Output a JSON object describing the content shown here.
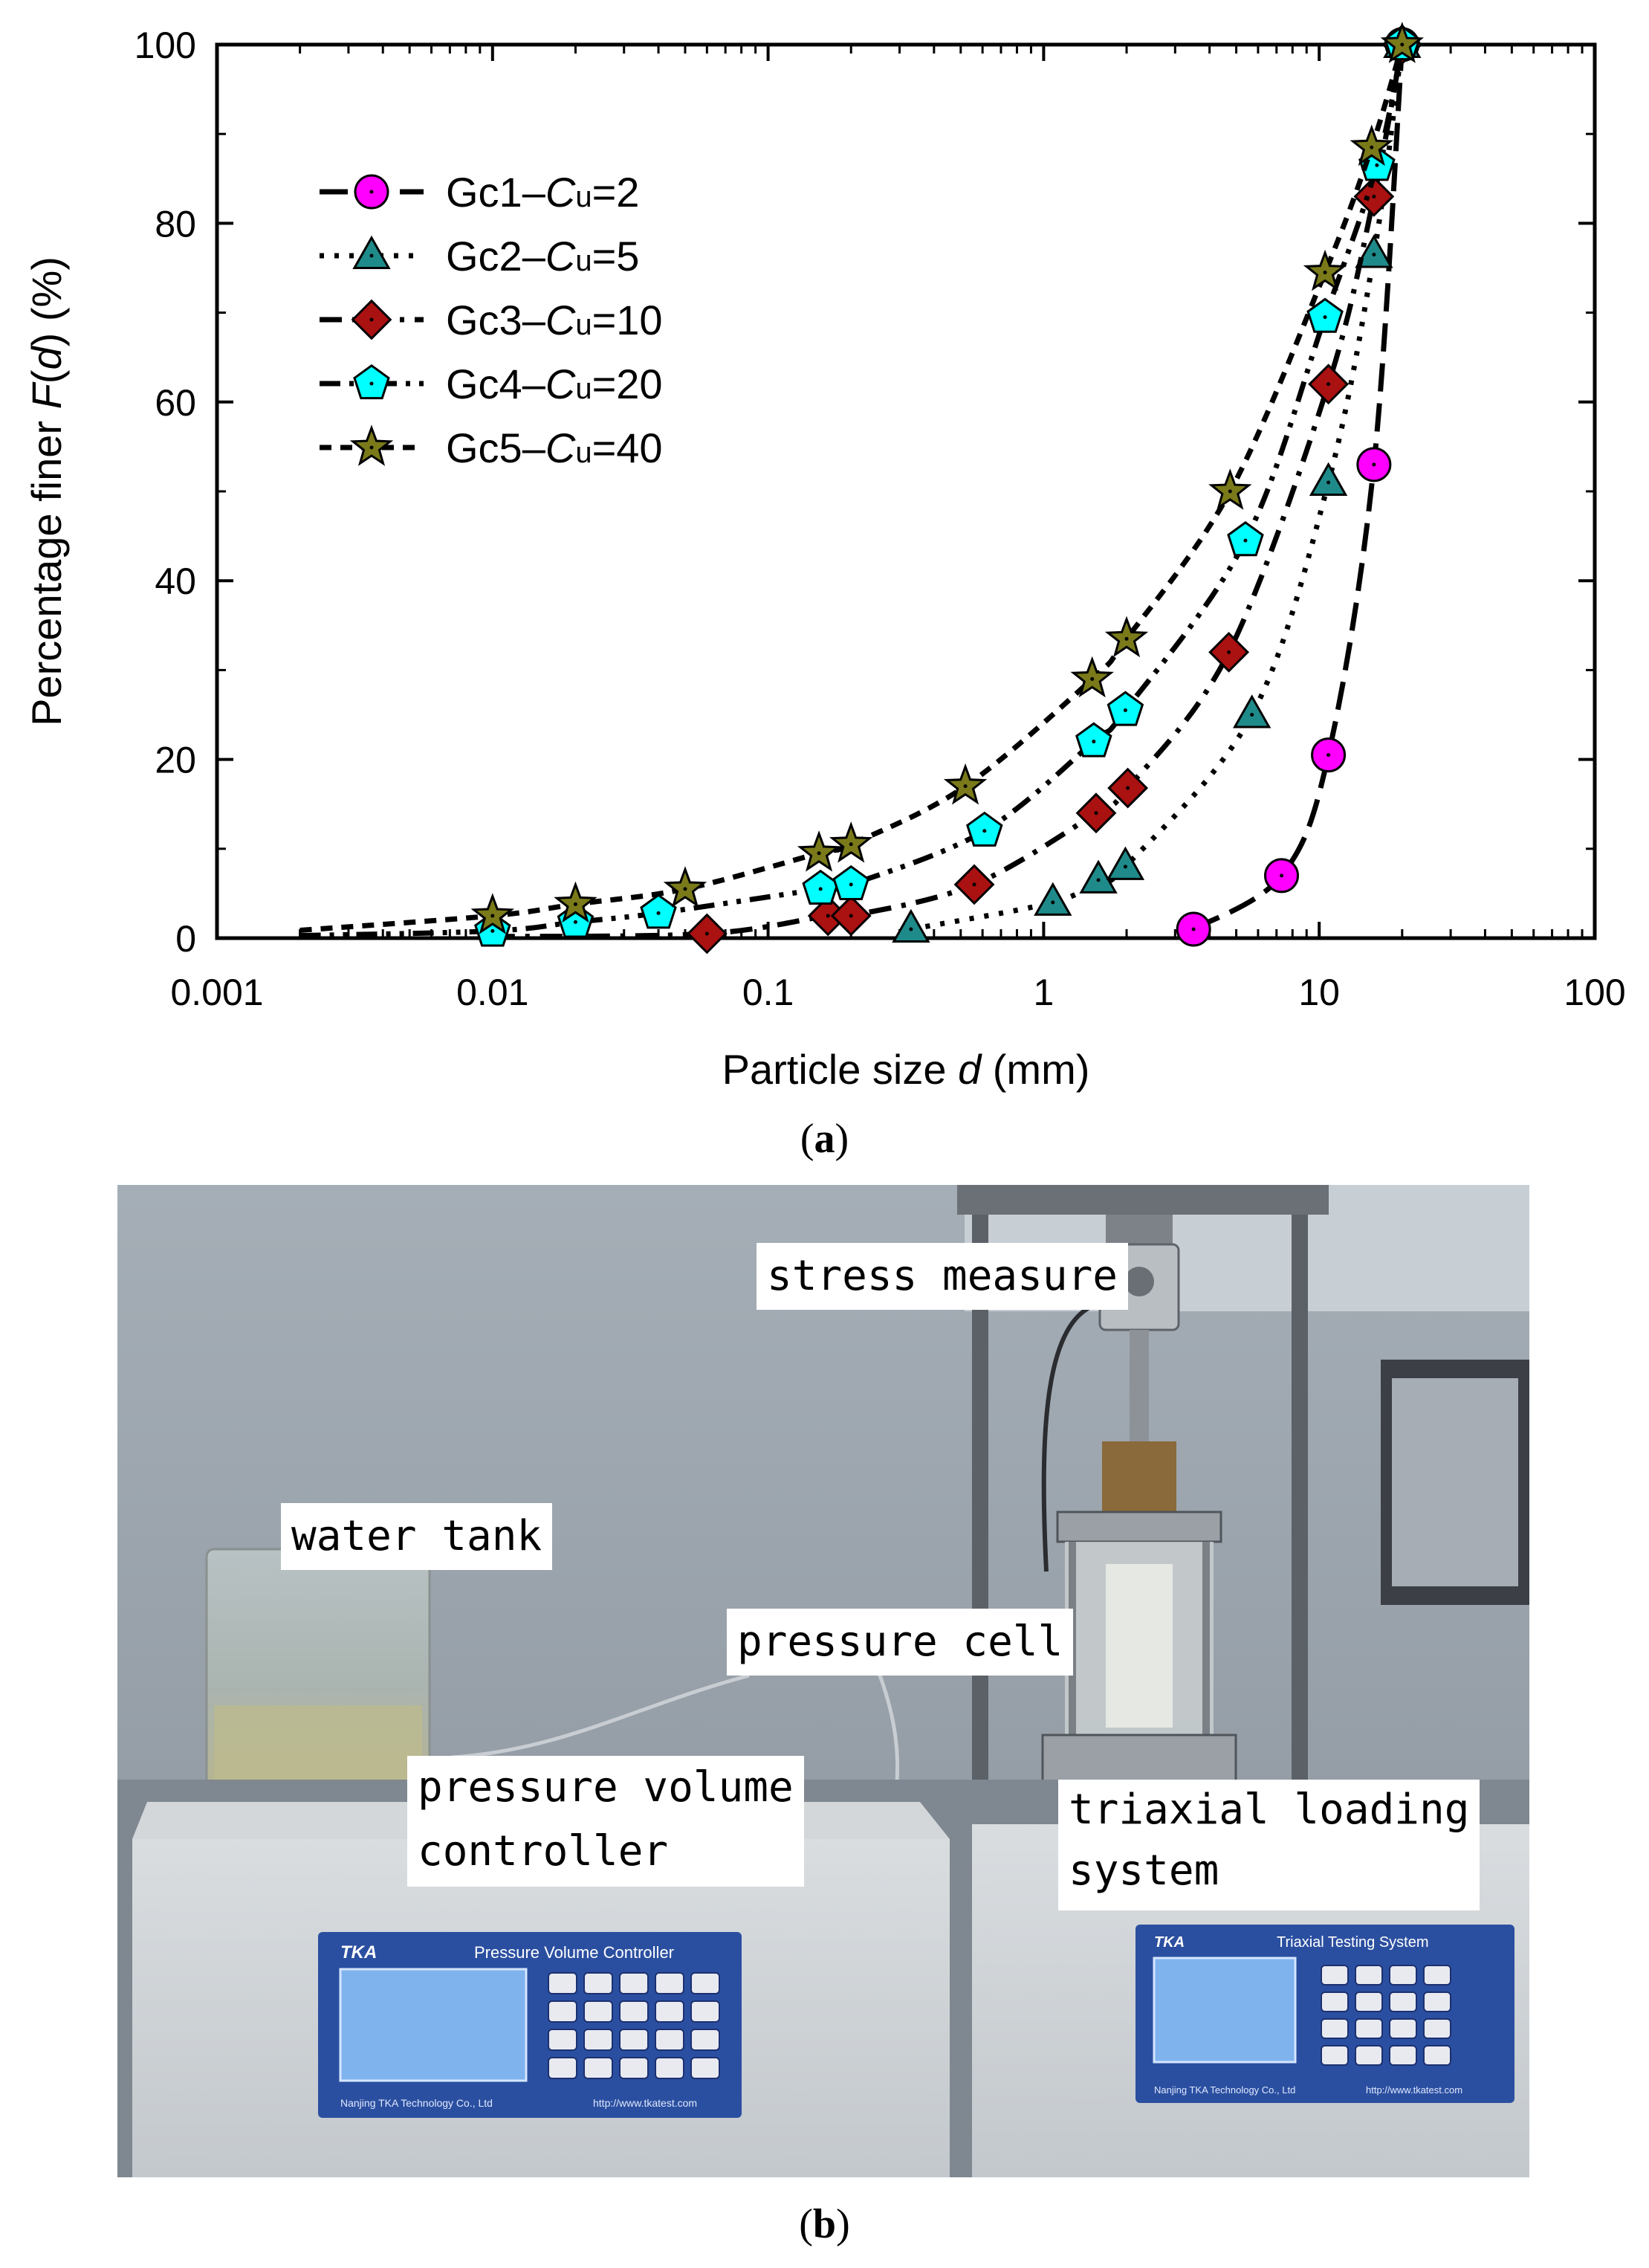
{
  "chart_data": {
    "type": "scatter",
    "xscale": "log",
    "xlim": [
      0.001,
      100
    ],
    "ylim": [
      0,
      100
    ],
    "xticks": [
      0.001,
      0.01,
      0.1,
      1,
      10,
      100
    ],
    "xtick_labels": [
      "0.001",
      "0.01",
      "0.1",
      "1",
      "10",
      "100"
    ],
    "yticks": [
      0,
      20,
      40,
      60,
      80,
      100
    ],
    "ytick_labels": [
      "0",
      "20",
      "40",
      "60",
      "80",
      "100"
    ],
    "xlabel": {
      "pre": "Particle size ",
      "var": "d",
      "post": " (mm)"
    },
    "ylabel": {
      "pre": "Percentage finer ",
      "var": "F",
      "mid": "(",
      "var2": "d",
      "post": ") (%)"
    },
    "legend_position": "top-left",
    "grid": false,
    "series": [
      {
        "name": "Gc1",
        "cu_label": "C",
        "cu_sub": "u",
        "cu_value": "=2",
        "marker": "circle",
        "color": "#ff00ff",
        "dash": "long-dash",
        "points": [
          [
            3.5,
            1
          ],
          [
            7.3,
            7
          ],
          [
            10.8,
            20.5
          ],
          [
            15.8,
            53
          ],
          [
            20,
            100
          ]
        ]
      },
      {
        "name": "Gc2",
        "cu_label": "C",
        "cu_sub": "u",
        "cu_value": "=5",
        "marker": "triangle",
        "color": "#1f8a8a",
        "dash": "dot",
        "points": [
          [
            0.33,
            1
          ],
          [
            1.08,
            4
          ],
          [
            1.58,
            6.5
          ],
          [
            1.98,
            8
          ],
          [
            5.7,
            25
          ],
          [
            10.8,
            51
          ],
          [
            15.8,
            76.5
          ],
          [
            20,
            100
          ]
        ]
      },
      {
        "name": "Gc3",
        "cu_label": "C",
        "cu_sub": "u",
        "cu_value": "=10",
        "marker": "diamond",
        "color": "#aa1111",
        "dash": "dash-dot",
        "points": [
          [
            0.06,
            0.5
          ],
          [
            0.165,
            2.5
          ],
          [
            0.2,
            2.5
          ],
          [
            0.56,
            6
          ],
          [
            1.55,
            14
          ],
          [
            2.02,
            16.8
          ],
          [
            4.7,
            32
          ],
          [
            10.8,
            62
          ],
          [
            15.8,
            83
          ],
          [
            20,
            100
          ]
        ]
      },
      {
        "name": "Gc4",
        "cu_label": "C",
        "cu_sub": "u",
        "cu_value": "=20",
        "marker": "pentagon",
        "color": "#00ffff",
        "dash": "dash-dot-dot",
        "points": [
          [
            0.01,
            0.8
          ],
          [
            0.02,
            1.8
          ],
          [
            0.04,
            2.8
          ],
          [
            0.155,
            5.5
          ],
          [
            0.2,
            6
          ],
          [
            0.61,
            12
          ],
          [
            1.52,
            22
          ],
          [
            1.98,
            25.5
          ],
          [
            5.4,
            44.5
          ],
          [
            10.5,
            69.5
          ],
          [
            16.2,
            86.5
          ],
          [
            20,
            100
          ]
        ]
      },
      {
        "name": "Gc5",
        "cu_label": "C",
        "cu_sub": "u",
        "cu_value": "=40",
        "marker": "star",
        "color": "#7a7a1a",
        "dash": "short-dash",
        "points": [
          [
            0.01,
            2.5
          ],
          [
            0.02,
            3.8
          ],
          [
            0.05,
            5.5
          ],
          [
            0.153,
            9.5
          ],
          [
            0.2,
            10.5
          ],
          [
            0.52,
            17
          ],
          [
            1.5,
            29
          ],
          [
            2.0,
            33.5
          ],
          [
            4.75,
            50
          ],
          [
            10.5,
            74.5
          ],
          [
            15.5,
            88.5
          ],
          [
            20,
            100
          ]
        ]
      }
    ]
  },
  "captions": {
    "a": "a",
    "b": "b"
  },
  "photo_labels": {
    "stress": "stress measure",
    "water": "water tank",
    "cell": "pressure cell",
    "pvc_line1": "pressure volume",
    "pvc_line2": "controller",
    "tri_line1": "triaxial loading",
    "tri_line2": "system"
  },
  "device_text": {
    "left_brand": "TKA",
    "left_title": "Pressure Volume Controller",
    "left_company": "Nanjing TKA Technology Co., Ltd",
    "left_url": "http://www.tkatest.com",
    "right_brand": "TKA",
    "right_title": "Triaxial Testing System",
    "right_company": "Nanjing TKA Technology Co., Ltd",
    "right_url": "http://www.tkatest.com"
  }
}
